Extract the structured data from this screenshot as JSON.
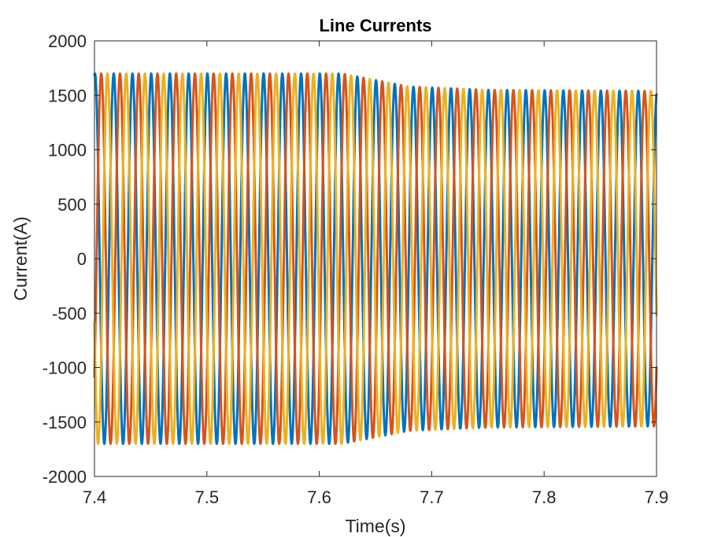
{
  "chart_data": {
    "type": "line",
    "title": "Line Currents",
    "xlabel": "Time(s)",
    "ylabel": "Current(A)",
    "xlim": [
      7.4,
      7.9
    ],
    "ylim": [
      -2000,
      2000
    ],
    "xticks": [
      "7.4",
      "7.5",
      "7.6",
      "7.7",
      "7.8",
      "7.9"
    ],
    "yticks": [
      "2000",
      "1500",
      "1000",
      "500",
      "0",
      "-500",
      "-1000",
      "-1500",
      "-2000"
    ],
    "grid": false,
    "legend": "none",
    "signal": {
      "frequency_hz": 60,
      "amplitude_points": [
        {
          "t": 7.4,
          "a": 1700
        },
        {
          "t": 7.62,
          "a": 1700
        },
        {
          "t": 7.68,
          "a": 1580
        },
        {
          "t": 7.75,
          "a": 1550
        },
        {
          "t": 7.9,
          "a": 1540
        }
      ]
    },
    "series": [
      {
        "color": "#0072BD",
        "phase_deg": 80
      },
      {
        "color": "#D95319",
        "phase_deg": -40
      },
      {
        "color": "#EDB120",
        "phase_deg": 200
      }
    ]
  }
}
